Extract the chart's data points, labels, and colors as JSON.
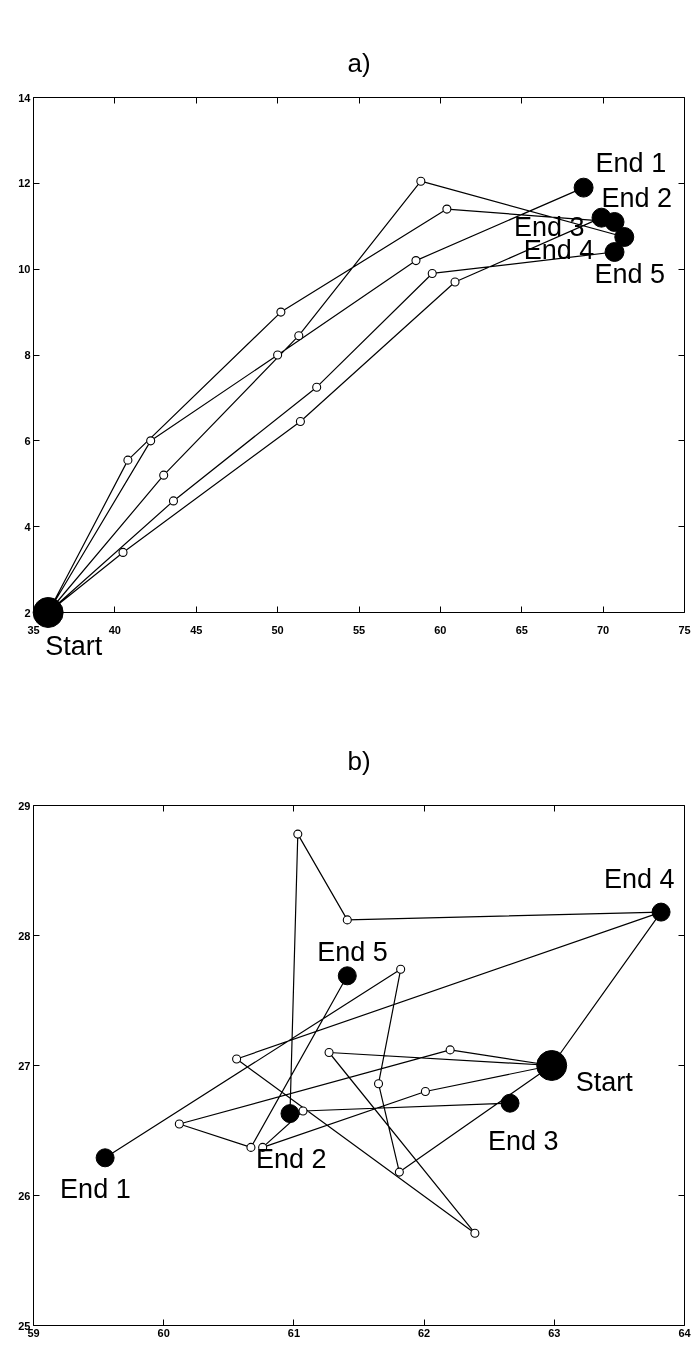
{
  "chart_data": [
    {
      "type": "line",
      "title": "a)",
      "xlim": [
        35,
        75
      ],
      "ylim": [
        2,
        14
      ],
      "xticks": [
        35,
        40,
        45,
        50,
        55,
        60,
        65,
        70,
        75
      ],
      "yticks": [
        2,
        4,
        6,
        8,
        10,
        12,
        14
      ],
      "grid": false,
      "series": [
        {
          "color": "#000000",
          "x": [
            35.9,
            42.2,
            50.0,
            58.5,
            68.8,
            null,
            35.9,
            40.8,
            50.2,
            60.4,
            70.7,
            null,
            35.9,
            40.5,
            51.4,
            60.9,
            69.9,
            null,
            35.9,
            43.0,
            51.3,
            58.8,
            71.3,
            null,
            35.9,
            43.6,
            52.4,
            59.5,
            70.7
          ],
          "values": [
            2.0,
            6.0,
            8.0,
            10.2,
            11.9,
            null,
            2.0,
            5.55,
            9.0,
            11.4,
            11.1,
            null,
            2.0,
            3.4,
            6.45,
            9.7,
            11.2,
            null,
            2.0,
            5.2,
            8.45,
            12.05,
            10.75,
            null,
            2.0,
            4.6,
            7.25,
            9.9,
            10.4
          ]
        },
        {
          "type": "scatter",
          "color": "#000000",
          "marker": "circle",
          "x": [
            42.2,
            50.0,
            58.5,
            40.8,
            50.2,
            60.4,
            40.5,
            51.4,
            60.9,
            43.0,
            51.3,
            58.8,
            43.6,
            52.4,
            59.5
          ],
          "values": [
            6.0,
            8.0,
            10.2,
            5.55,
            9.0,
            11.4,
            3.4,
            6.45,
            9.7,
            5.2,
            8.45,
            12.05,
            4.6,
            7.25,
            9.9
          ]
        },
        {
          "type": "bubble",
          "color": "#000000",
          "marker": "circle",
          "x": [
            35.9,
            68.8,
            70.7,
            69.9,
            71.3,
            70.7
          ],
          "values": [
            2.0,
            11.9,
            11.1,
            11.2,
            10.75,
            10.4
          ],
          "sizes": [
            1,
            0.4,
            0.4,
            0.4,
            0.4,
            0.4
          ]
        }
      ],
      "annotations": [
        {
          "text": "Start",
          "x": 35.9,
          "y": 2.0
        },
        {
          "text": "End 1",
          "x": 68.8,
          "y": 11.9
        },
        {
          "text": "End 2",
          "x": 70.7,
          "y": 11.1
        },
        {
          "text": "End 3",
          "x": 69.9,
          "y": 11.2
        },
        {
          "text": "End 4",
          "x": 71.3,
          "y": 10.75
        },
        {
          "text": "End 5",
          "x": 70.7,
          "y": 10.4
        }
      ]
    },
    {
      "type": "line",
      "title": "b)",
      "xlim": [
        59,
        64
      ],
      "ylim": [
        25,
        29
      ],
      "xticks": [
        59,
        60,
        61,
        62,
        63,
        64
      ],
      "yticks": [
        25,
        26,
        27,
        28,
        29
      ],
      "grid": false,
      "series": [
        {
          "color": "#000000",
          "x": [
            62.98,
            61.81,
            61.65,
            61.82,
            59.55,
            null,
            62.98,
            63.82,
            61.41,
            61.03,
            60.97,
            null,
            62.98,
            62.01,
            60.76,
            61.07,
            62.66,
            null,
            62.98,
            61.27,
            62.39,
            60.56,
            63.82,
            null,
            62.98,
            62.2,
            60.12,
            60.67,
            61.41
          ],
          "values": [
            27.0,
            26.18,
            26.86,
            27.74,
            26.29,
            null,
            27.0,
            28.18,
            28.12,
            28.78,
            26.63,
            null,
            27.0,
            26.8,
            26.37,
            26.65,
            26.71,
            null,
            27.0,
            27.1,
            25.71,
            27.05,
            28.18,
            null,
            27.0,
            27.12,
            26.55,
            26.37,
            27.69
          ]
        },
        {
          "type": "scatter",
          "color": "#000000",
          "marker": "circle",
          "x": [
            61.81,
            61.65,
            61.82,
            61.41,
            61.03,
            62.01,
            60.76,
            61.07,
            61.27,
            62.39,
            60.56,
            62.2,
            60.12,
            60.67
          ],
          "values": [
            26.18,
            26.86,
            27.74,
            28.12,
            28.78,
            26.8,
            26.37,
            26.65,
            27.1,
            25.71,
            27.05,
            27.12,
            26.55,
            26.37
          ]
        },
        {
          "type": "bubble",
          "color": "#000000",
          "marker": "circle",
          "x": [
            62.98,
            59.55,
            60.97,
            62.66,
            63.82,
            61.41
          ],
          "values": [
            27.0,
            26.29,
            26.63,
            26.71,
            28.18,
            27.69
          ],
          "sizes": [
            1,
            0.36,
            0.36,
            0.36,
            0.36,
            0.36
          ]
        }
      ],
      "annotations": [
        {
          "text": "Start",
          "x": 62.98,
          "y": 27.0
        },
        {
          "text": "End 1",
          "x": 59.55,
          "y": 26.29
        },
        {
          "text": "End 2",
          "x": 60.97,
          "y": 26.63
        },
        {
          "text": "End 3",
          "x": 62.66,
          "y": 26.71
        },
        {
          "text": "End 4",
          "x": 63.82,
          "y": 28.18
        },
        {
          "text": "End 5",
          "x": 61.41,
          "y": 27.69
        }
      ]
    }
  ]
}
